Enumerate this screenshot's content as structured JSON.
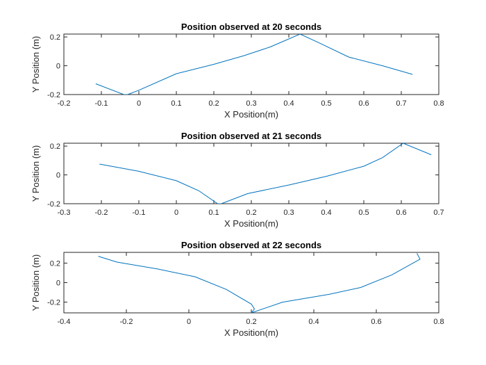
{
  "chart_data": [
    {
      "type": "line",
      "title": "Position observed at 20 seconds",
      "xlabel": "X Position(m)",
      "ylabel": "Y Position (m)",
      "xlim": [
        -0.2,
        0.8
      ],
      "ylim": [
        -0.2,
        0.22
      ],
      "xticks": [
        -0.2,
        -0.1,
        0,
        0.1,
        0.2,
        0.3,
        0.4,
        0.5,
        0.6,
        0.7,
        0.8
      ],
      "xtick_labels": [
        "-0.2",
        "-0.1",
        "0",
        "0.1",
        "0.2",
        "0.3",
        "0.4",
        "0.5",
        "0.6",
        "0.7",
        "0.8"
      ],
      "yticks": [
        -0.2,
        0,
        0.2
      ],
      "ytick_labels": [
        "-0.2",
        "0",
        "0.2"
      ],
      "grid": false,
      "color": "#0072bd",
      "series": [
        {
          "x": [
            -0.115,
            -0.04,
            -0.03,
            0.0,
            0.1,
            0.2,
            0.28,
            0.35,
            0.43,
            0.48,
            0.56,
            0.65,
            0.73
          ],
          "y": [
            -0.125,
            -0.2,
            -0.2,
            -0.17,
            -0.055,
            0.01,
            0.07,
            0.13,
            0.22,
            0.16,
            0.06,
            0.0,
            -0.06
          ]
        }
      ]
    },
    {
      "type": "line",
      "title": "Position observed at 21 seconds",
      "xlabel": "X Position(m)",
      "ylabel": "Y Position (m)",
      "xlim": [
        -0.3,
        0.7
      ],
      "ylim": [
        -0.2,
        0.22
      ],
      "xticks": [
        -0.3,
        -0.2,
        -0.1,
        0,
        0.1,
        0.2,
        0.3,
        0.4,
        0.5,
        0.6,
        0.7
      ],
      "xtick_labels": [
        "-0.3",
        "-0.2",
        "-0.1",
        "0",
        "0.1",
        "0.2",
        "0.3",
        "0.4",
        "0.5",
        "0.6",
        "0.7"
      ],
      "yticks": [
        -0.2,
        0,
        0.2
      ],
      "ytick_labels": [
        "-0.2",
        "0",
        "0.2"
      ],
      "grid": false,
      "color": "#0072bd",
      "series": [
        {
          "x": [
            -0.205,
            -0.1,
            0.0,
            0.06,
            0.11,
            0.12,
            0.19,
            0.3,
            0.4,
            0.5,
            0.55,
            0.605,
            0.68
          ],
          "y": [
            0.075,
            0.025,
            -0.04,
            -0.11,
            -0.2,
            -0.2,
            -0.13,
            -0.07,
            -0.01,
            0.06,
            0.12,
            0.22,
            0.14
          ]
        }
      ]
    },
    {
      "type": "line",
      "title": "Position observed at 22 seconds",
      "xlabel": "X Position(m)",
      "ylabel": "Y Position (m)",
      "xlim": [
        -0.4,
        0.8
      ],
      "ylim": [
        -0.31,
        0.31
      ],
      "xticks": [
        -0.4,
        -0.2,
        0,
        0.2,
        0.4,
        0.6,
        0.8
      ],
      "xtick_labels": [
        "-0.4",
        "-0.2",
        "0",
        "0.2",
        "0.4",
        "0.6",
        "0.8"
      ],
      "yticks": [
        -0.2,
        0,
        0.2
      ],
      "ytick_labels": [
        "-0.2",
        "0",
        "0.2"
      ],
      "grid": false,
      "color": "#0072bd",
      "series": [
        {
          "x": [
            -0.29,
            -0.23,
            -0.1,
            0.02,
            0.12,
            0.2,
            0.21,
            0.2,
            0.3,
            0.45,
            0.55,
            0.65,
            0.74,
            0.73
          ],
          "y": [
            0.27,
            0.21,
            0.14,
            0.06,
            -0.07,
            -0.22,
            -0.27,
            -0.31,
            -0.2,
            -0.12,
            -0.05,
            0.08,
            0.24,
            0.3
          ]
        }
      ]
    }
  ]
}
